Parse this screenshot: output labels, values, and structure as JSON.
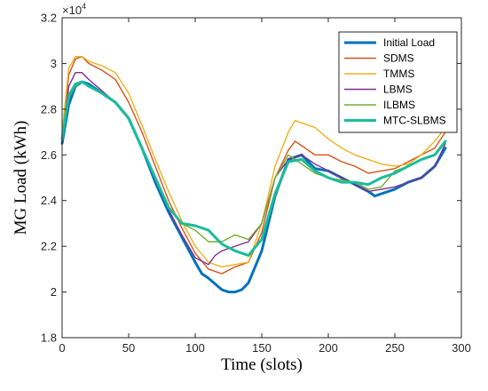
{
  "chart_data": {
    "type": "line",
    "xlabel": "Time (slots)",
    "ylabel": "MG Load (kWh)",
    "y_exponent_label": "×10",
    "y_exponent_power": "4",
    "xlim": [
      0,
      300
    ],
    "ylim": [
      1.8,
      3.2
    ],
    "x_ticks": [
      0,
      50,
      100,
      150,
      200,
      250,
      300
    ],
    "x_tick_labels": [
      "0",
      "50",
      "100",
      "150",
      "200",
      "250",
      "300"
    ],
    "y_ticks": [
      1.8,
      2.0,
      2.2,
      2.4,
      2.6,
      2.8,
      3.0,
      3.2
    ],
    "y_tick_labels": [
      "1.8",
      "2",
      "2.2",
      "2.4",
      "2.6",
      "2.8",
      "3",
      "3.2"
    ],
    "grid": false,
    "legend_position": "top-right",
    "series": [
      {
        "name": "Initial Load",
        "color": "#0072BD",
        "width": 3,
        "x": [
          0,
          5,
          10,
          15,
          20,
          30,
          40,
          50,
          60,
          70,
          80,
          90,
          100,
          105,
          110,
          120,
          125,
          130,
          135,
          140,
          150,
          160,
          170,
          180,
          190,
          200,
          210,
          220,
          230,
          235,
          240,
          250,
          260,
          270,
          280,
          288
        ],
        "y": [
          2.65,
          2.82,
          2.9,
          2.92,
          2.91,
          2.87,
          2.83,
          2.76,
          2.63,
          2.48,
          2.35,
          2.24,
          2.13,
          2.08,
          2.06,
          2.01,
          2.0,
          2.0,
          2.01,
          2.04,
          2.18,
          2.42,
          2.58,
          2.6,
          2.54,
          2.53,
          2.5,
          2.47,
          2.44,
          2.42,
          2.43,
          2.45,
          2.48,
          2.5,
          2.55,
          2.63
        ]
      },
      {
        "name": "SDMS",
        "color": "#D95319",
        "width": 1.4,
        "x": [
          0,
          5,
          10,
          15,
          20,
          30,
          40,
          50,
          60,
          70,
          80,
          90,
          100,
          110,
          120,
          130,
          140,
          150,
          160,
          170,
          175,
          180,
          190,
          200,
          210,
          220,
          230,
          240,
          250,
          260,
          270,
          280,
          288
        ],
        "y": [
          2.68,
          2.95,
          3.02,
          3.03,
          3.0,
          2.97,
          2.93,
          2.83,
          2.7,
          2.55,
          2.4,
          2.28,
          2.17,
          2.1,
          2.08,
          2.11,
          2.13,
          2.26,
          2.5,
          2.62,
          2.66,
          2.64,
          2.6,
          2.6,
          2.57,
          2.55,
          2.52,
          2.53,
          2.54,
          2.57,
          2.6,
          2.63,
          2.7
        ]
      },
      {
        "name": "TMMS",
        "color": "#EDB120",
        "width": 1.4,
        "x": [
          0,
          5,
          10,
          15,
          20,
          30,
          40,
          50,
          60,
          70,
          80,
          90,
          100,
          110,
          120,
          130,
          140,
          150,
          160,
          170,
          175,
          180,
          190,
          200,
          210,
          220,
          230,
          240,
          250,
          260,
          270,
          280,
          288
        ],
        "y": [
          2.7,
          2.98,
          3.03,
          3.03,
          3.01,
          2.99,
          2.96,
          2.87,
          2.73,
          2.58,
          2.44,
          2.31,
          2.2,
          2.13,
          2.11,
          2.12,
          2.13,
          2.3,
          2.55,
          2.7,
          2.75,
          2.74,
          2.72,
          2.67,
          2.63,
          2.6,
          2.58,
          2.56,
          2.55,
          2.56,
          2.6,
          2.66,
          2.72
        ]
      },
      {
        "name": "LBMS",
        "color": "#7E2F8E",
        "width": 1.4,
        "x": [
          0,
          5,
          10,
          15,
          20,
          30,
          40,
          50,
          60,
          70,
          80,
          90,
          100,
          110,
          115,
          120,
          130,
          140,
          150,
          160,
          170,
          180,
          190,
          200,
          210,
          220,
          230,
          240,
          250,
          260,
          270,
          280,
          288
        ],
        "y": [
          2.66,
          2.9,
          2.96,
          2.96,
          2.93,
          2.88,
          2.83,
          2.76,
          2.63,
          2.49,
          2.36,
          2.25,
          2.15,
          2.12,
          2.16,
          2.18,
          2.2,
          2.22,
          2.3,
          2.5,
          2.58,
          2.6,
          2.56,
          2.53,
          2.5,
          2.47,
          2.44,
          2.45,
          2.46,
          2.48,
          2.5,
          2.55,
          2.65
        ]
      },
      {
        "name": "ILBMS",
        "color": "#77AC30",
        "width": 1.4,
        "x": [
          0,
          5,
          10,
          15,
          20,
          30,
          40,
          50,
          60,
          70,
          80,
          90,
          100,
          110,
          120,
          130,
          140,
          150,
          160,
          170,
          180,
          190,
          200,
          210,
          220,
          230,
          240,
          250,
          260,
          270,
          280,
          288
        ],
        "y": [
          2.67,
          2.85,
          2.9,
          2.92,
          2.9,
          2.87,
          2.83,
          2.76,
          2.63,
          2.5,
          2.37,
          2.3,
          2.27,
          2.22,
          2.22,
          2.25,
          2.23,
          2.3,
          2.5,
          2.6,
          2.56,
          2.52,
          2.5,
          2.49,
          2.48,
          2.45,
          2.46,
          2.53,
          2.55,
          2.58,
          2.6,
          2.66
        ]
      },
      {
        "name": "MTC-SLBMS",
        "color": "#1ABC9C",
        "width": 3,
        "x": [
          0,
          5,
          10,
          15,
          20,
          30,
          40,
          50,
          60,
          70,
          80,
          90,
          100,
          110,
          115,
          120,
          130,
          140,
          150,
          160,
          170,
          180,
          190,
          200,
          210,
          220,
          230,
          240,
          250,
          260,
          270,
          280,
          288
        ],
        "y": [
          2.67,
          2.86,
          2.91,
          2.92,
          2.9,
          2.87,
          2.83,
          2.76,
          2.63,
          2.5,
          2.37,
          2.3,
          2.29,
          2.27,
          2.24,
          2.21,
          2.18,
          2.16,
          2.23,
          2.43,
          2.57,
          2.58,
          2.53,
          2.5,
          2.48,
          2.48,
          2.47,
          2.5,
          2.52,
          2.55,
          2.58,
          2.6,
          2.66
        ]
      }
    ]
  }
}
